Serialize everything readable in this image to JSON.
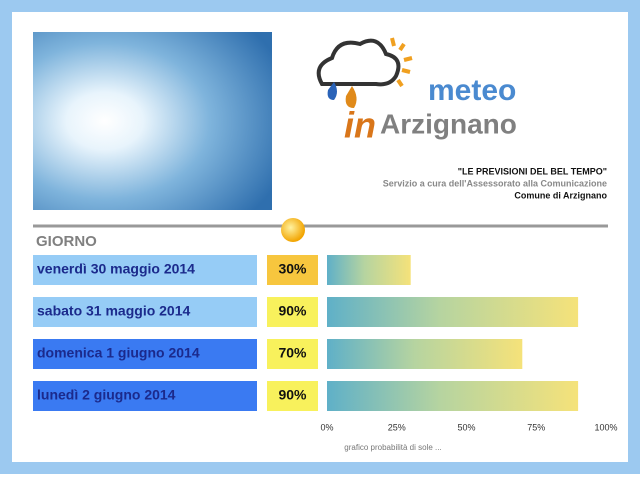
{
  "header": {
    "logo_top": "meteo",
    "logo_in": "in",
    "logo_town": "Arzignano",
    "slogan": "\"LE PREVISIONI DEL BEL TEMPO\"",
    "service": "Servizio a cura dell'Assessorato alla Comunicazione",
    "town": "Comune di Arzignano"
  },
  "chart_data": {
    "type": "bar",
    "orientation": "horizontal",
    "category_header": "GIORNO",
    "categories": [
      "venerdì 30 maggio 2014",
      "sabato 31 maggio 2014",
      "domenica 1 giugno 2014",
      "lunedì 2 giugno 2014"
    ],
    "category_colors": [
      "#96ccf6",
      "#96ccf6",
      "#3a7af2",
      "#3a7af2"
    ],
    "values": [
      30,
      90,
      70,
      90
    ],
    "value_labels": [
      "30%",
      "90%",
      "70%",
      "90%"
    ],
    "value_label_colors": [
      "#f7c63e",
      "#f8f15c",
      "#f8f15c",
      "#f8f15c"
    ],
    "xlim": [
      0,
      100
    ],
    "xticks": [
      {
        "value": 0,
        "label": "0%"
      },
      {
        "value": 25,
        "label": "25%"
      },
      {
        "value": 50,
        "label": "50%"
      },
      {
        "value": 75,
        "label": "75%"
      },
      {
        "value": 100,
        "label": "100%"
      }
    ],
    "x_label": "grafico probabilità di sole ..."
  }
}
